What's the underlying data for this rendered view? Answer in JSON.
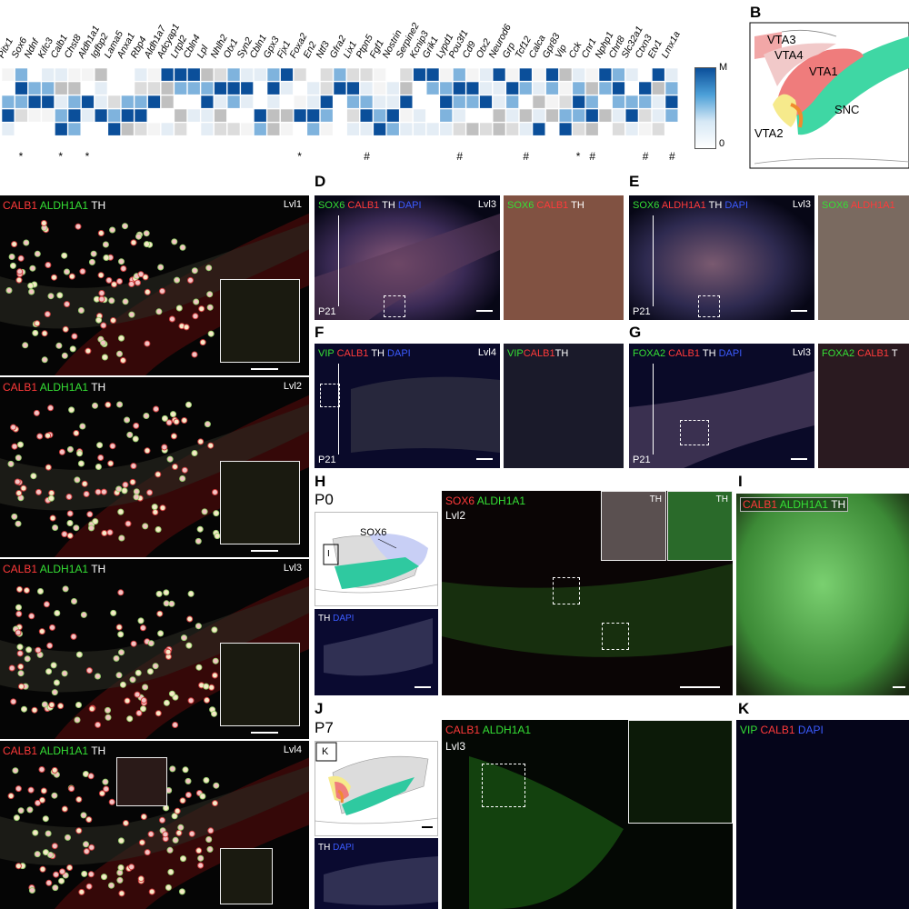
{
  "heatmap": {
    "genes": [
      "Pitx1",
      "Sox6",
      "Ndnf",
      "Kifc3",
      "Calb1",
      "Chst8",
      "Aldh1a1",
      "Igfbp2",
      "Lama5",
      "Anxa1",
      "Rbp4",
      "Aldh1a7",
      "Adcyap1",
      "Lrtpl2",
      "Cbln4",
      "Lpl",
      "Nhlh2",
      "Otx1",
      "Syn2",
      "Cbln1",
      "Gpx3",
      "Fjx1",
      "Foxa2",
      "En2",
      "Ntf3",
      "Gfra2",
      "Lix1",
      "Ptpn5",
      "Fgf1",
      "Nostrin",
      "Serpine2",
      "Kcnip3",
      "Grik1",
      "Lypd1",
      "Pou3f1",
      "Cd9",
      "Otx2",
      "Neurod6",
      "Grp",
      "Tcf12",
      "Calca",
      "Gpr83",
      "Vip",
      "Cck",
      "Cnr1",
      "Nphp1",
      "Chrt8",
      "Slc32a1",
      "Ctxn3",
      "Etv1",
      "Lmx1a"
    ],
    "legend_max": "Max",
    "legend_min": "0",
    "marks": [
      "*",
      "*",
      "*",
      "*",
      "#",
      "#",
      "#",
      "*",
      "#",
      "#",
      "#"
    ]
  },
  "panelB": {
    "letter": "B",
    "regions": [
      "VTA3",
      "VTA4",
      "VTA1",
      "SNC",
      "VTA2"
    ],
    "colors": {
      "VTA3": "#f2a7a7",
      "VTA4": "#f1c9c9",
      "VTA1": "#ef7c7c",
      "SNC": "#3fd7a4",
      "VTA2": "#f6ea8c"
    }
  },
  "leftPanels": [
    {
      "lvl": "Lvl1",
      "t1": "CALB1",
      "t2": "ALDH1A1",
      "t3": "TH"
    },
    {
      "lvl": "Lvl2",
      "t1": "CALB1",
      "t2": "ALDH1A1",
      "t3": "TH"
    },
    {
      "lvl": "Lvl3",
      "t1": "CALB1",
      "t2": "ALDH1A1",
      "t3": "TH"
    },
    {
      "lvl": "Lvl4",
      "t1": "CALB1",
      "t2": "ALDH1A1",
      "t3": "TH"
    }
  ],
  "panelD": {
    "letter": "D",
    "m1": "SOX6",
    "m2": "CALB1",
    "m3": "TH",
    "m4": "DAPI",
    "lvl": "Lvl3",
    "age": "P21",
    "z1": "SOX6",
    "z2": "CALB1",
    "z3": "TH"
  },
  "panelE": {
    "letter": "E",
    "m1": "SOX6",
    "m2": "ALDH1A1",
    "m3": "TH",
    "m4": "DAPI",
    "lvl": "Lvl3",
    "age": "P21",
    "z1": "SOX6",
    "z2": "ALDH1A1"
  },
  "panelF": {
    "letter": "F",
    "m1": "VIP",
    "m2": "CALB1",
    "m3": "TH",
    "m4": "DAPI",
    "lvl": "Lvl4",
    "age": "P21",
    "z1": "VIP",
    "z2": "CALB1",
    "z3": "TH"
  },
  "panelG": {
    "letter": "G",
    "m1": "FOXA2",
    "m2": "CALB1",
    "m3": "TH",
    "m4": "DAPI",
    "lvl": "Lvl3",
    "age": "P21",
    "z1": "FOXA2",
    "z2": "CALB1",
    "z3": "T"
  },
  "panelH": {
    "letter": "H",
    "age": "P0",
    "region": "SOX6",
    "box": "I",
    "th": "TH",
    "dapi": "DAPI",
    "m1": "SOX6",
    "m2": "ALDH1A1",
    "lvl": "Lvl2",
    "in1": "TH",
    "in2": "TH"
  },
  "panelI": {
    "letter": "I",
    "m1": "CALB1",
    "m2": "ALDH1A1",
    "m3": "TH"
  },
  "panelJ": {
    "letter": "J",
    "age": "P7",
    "box": "K",
    "th": "TH",
    "dapi": "DAPI",
    "m1": "CALB1",
    "m2": "ALDH1A1",
    "lvl": "Lvl3"
  },
  "panelK": {
    "letter": "K",
    "m1": "VIP",
    "m2": "CALB1",
    "m3": "DAPI"
  }
}
